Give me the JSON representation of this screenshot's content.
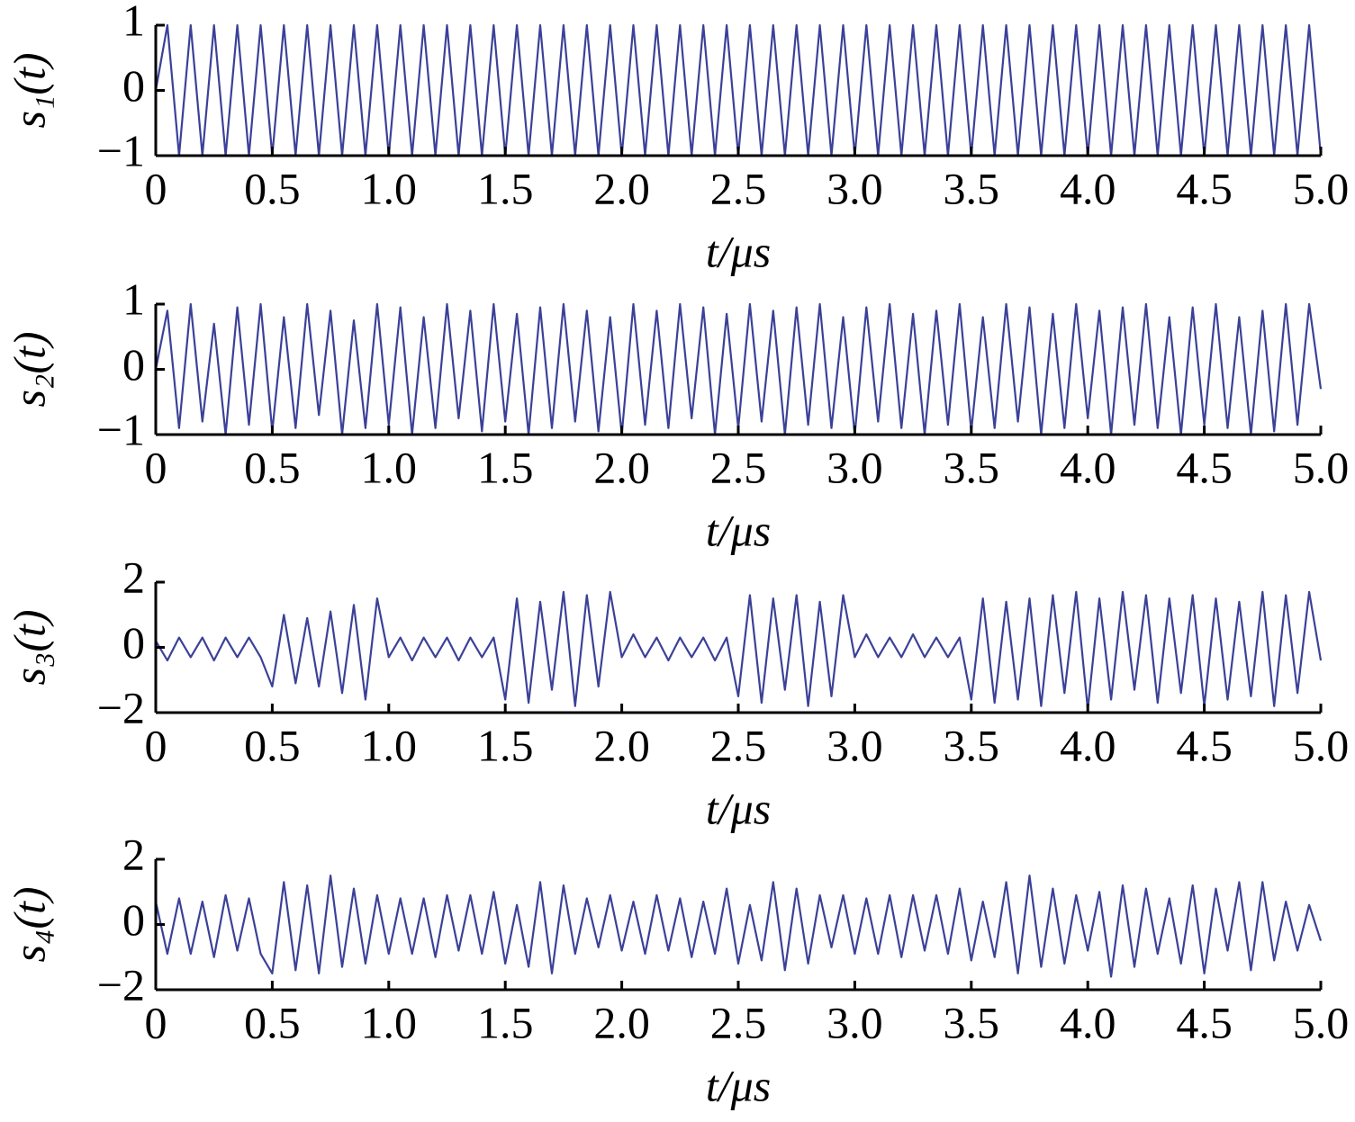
{
  "chart_data": [
    {
      "type": "line",
      "ylabel": "s₁(t)",
      "xlabel": "t/μs",
      "x": [
        0,
        0.05,
        0.1,
        0.15,
        0.2,
        0.25,
        0.3,
        0.35,
        0.4,
        0.45,
        0.5,
        0.55,
        0.6,
        0.65,
        0.7,
        0.75,
        0.8,
        0.85,
        0.9,
        0.95,
        1,
        1.05,
        1.1,
        1.15,
        1.2,
        1.25,
        1.3,
        1.35,
        1.4,
        1.45,
        1.5,
        1.55,
        1.6,
        1.65,
        1.7,
        1.75,
        1.8,
        1.85,
        1.9,
        1.95,
        2,
        2.05,
        2.1,
        2.15,
        2.2,
        2.25,
        2.3,
        2.35,
        2.4,
        2.45,
        2.5,
        2.55,
        2.6,
        2.65,
        2.7,
        2.75,
        2.8,
        2.85,
        2.9,
        2.95,
        3,
        3.05,
        3.1,
        3.15,
        3.2,
        3.25,
        3.3,
        3.35,
        3.4,
        3.45,
        3.5,
        3.55,
        3.6,
        3.65,
        3.7,
        3.75,
        3.8,
        3.85,
        3.9,
        3.95,
        4,
        4.05,
        4.1,
        4.15,
        4.2,
        4.25,
        4.3,
        4.35,
        4.4,
        4.45,
        4.5,
        4.55,
        4.6,
        4.65,
        4.7,
        4.75,
        4.8,
        4.85,
        4.9,
        4.95,
        5
      ],
      "values": [
        0,
        1,
        -1,
        1,
        -1,
        1,
        -1,
        1,
        -1,
        1,
        -1,
        1,
        -1,
        1,
        -1,
        1,
        -1,
        1,
        -1,
        1,
        -1,
        1,
        -1,
        1,
        -1,
        1,
        -1,
        1,
        -1,
        1,
        -1,
        1,
        -1,
        1,
        -1,
        1,
        -1,
        1,
        -1,
        1,
        -1,
        1,
        -1,
        1,
        -1,
        1,
        -1,
        1,
        -1,
        1,
        -1,
        1,
        -1,
        1,
        -1,
        1,
        -1,
        1,
        -1,
        1,
        -1,
        1,
        -1,
        1,
        -1,
        1,
        -1,
        1,
        -1,
        1,
        -1,
        1,
        -1,
        1,
        -1,
        1,
        -1,
        1,
        -1,
        1,
        -1,
        1,
        -1,
        1,
        -1,
        1,
        -1,
        1,
        -1,
        1,
        -1,
        1,
        -1,
        1,
        -1,
        1,
        -1,
        1,
        -1,
        1,
        -1
      ],
      "color": "#3b4197",
      "xlim": [
        0,
        5
      ],
      "xticks": [
        0,
        0.5,
        {
          "value": 1,
          "label": "1.0"
        },
        1.5,
        {
          "value": 2,
          "label": "2.0"
        },
        2.5,
        {
          "value": 3,
          "label": "3.0"
        },
        3.5,
        {
          "value": 4,
          "label": "4.0"
        },
        4.5,
        {
          "value": 5,
          "label": "5.0"
        }
      ],
      "ylim": [
        -1,
        1
      ],
      "yticks": [
        {
          "value": -1,
          "label": "−1"
        },
        0,
        1
      ]
    },
    {
      "type": "line",
      "ylabel": "s₂(t)",
      "xlabel": "t/μs",
      "x": [
        0,
        0.05,
        0.1,
        0.15,
        0.2,
        0.25,
        0.3,
        0.35,
        0.4,
        0.45,
        0.5,
        0.55,
        0.6,
        0.65,
        0.7,
        0.75,
        0.8,
        0.85,
        0.9,
        0.95,
        1,
        1.05,
        1.1,
        1.15,
        1.2,
        1.25,
        1.3,
        1.35,
        1.4,
        1.45,
        1.5,
        1.55,
        1.6,
        1.65,
        1.7,
        1.75,
        1.8,
        1.85,
        1.9,
        1.95,
        2,
        2.05,
        2.1,
        2.15,
        2.2,
        2.25,
        2.3,
        2.35,
        2.4,
        2.45,
        2.5,
        2.55,
        2.6,
        2.65,
        2.7,
        2.75,
        2.8,
        2.85,
        2.9,
        2.95,
        3,
        3.05,
        3.1,
        3.15,
        3.2,
        3.25,
        3.3,
        3.35,
        3.4,
        3.45,
        3.5,
        3.55,
        3.6,
        3.65,
        3.7,
        3.75,
        3.8,
        3.85,
        3.9,
        3.95,
        4,
        4.05,
        4.1,
        4.15,
        4.2,
        4.25,
        4.3,
        4.35,
        4.4,
        4.45,
        4.5,
        4.55,
        4.6,
        4.65,
        4.7,
        4.75,
        4.8,
        4.85,
        4.9,
        4.95,
        5
      ],
      "values": [
        0,
        0.9,
        -0.9,
        1,
        -0.8,
        0.7,
        -1,
        0.95,
        -0.85,
        1,
        -0.95,
        0.8,
        -0.9,
        1,
        -0.7,
        0.9,
        -1,
        0.75,
        -0.9,
        1,
        -0.85,
        0.95,
        -1,
        0.8,
        -0.9,
        1,
        -0.75,
        0.9,
        -0.95,
        1,
        -0.8,
        0.85,
        -1,
        0.95,
        -0.9,
        1,
        -0.8,
        0.9,
        -0.95,
        0.8,
        -1,
        1,
        -0.85,
        0.9,
        -0.9,
        1,
        -0.75,
        0.95,
        -1,
        0.85,
        -0.9,
        1,
        -0.8,
        0.9,
        -1,
        0.95,
        -0.85,
        1,
        -0.9,
        0.8,
        -1,
        0.95,
        -0.8,
        1,
        -0.9,
        0.85,
        -1,
        0.9,
        -0.85,
        1,
        -0.95,
        0.8,
        -0.9,
        1,
        -0.8,
        0.95,
        -1,
        0.85,
        -0.9,
        1,
        -0.75,
        0.9,
        -1,
        0.95,
        -0.85,
        1,
        -0.9,
        0.8,
        -1,
        0.95,
        -0.85,
        1,
        -0.9,
        0.8,
        -1,
        0.9,
        -0.95,
        1,
        -0.85,
        1,
        -0.3
      ],
      "color": "#3b4197",
      "xlim": [
        0,
        5
      ],
      "xticks": [
        0,
        0.5,
        {
          "value": 1,
          "label": "1.0"
        },
        1.5,
        {
          "value": 2,
          "label": "2.0"
        },
        2.5,
        {
          "value": 3,
          "label": "3.0"
        },
        3.5,
        {
          "value": 4,
          "label": "4.0"
        },
        4.5,
        {
          "value": 5,
          "label": "5.0"
        }
      ],
      "ylim": [
        -1,
        1
      ],
      "yticks": [
        {
          "value": -1,
          "label": "−1"
        },
        0,
        1
      ]
    },
    {
      "type": "line",
      "ylabel": "s₃(t)",
      "xlabel": "t/μs",
      "x": [
        0,
        0.05,
        0.1,
        0.15,
        0.2,
        0.25,
        0.3,
        0.35,
        0.4,
        0.45,
        0.5,
        0.55,
        0.6,
        0.65,
        0.7,
        0.75,
        0.8,
        0.85,
        0.9,
        0.95,
        1,
        1.05,
        1.1,
        1.15,
        1.2,
        1.25,
        1.3,
        1.35,
        1.4,
        1.45,
        1.5,
        1.55,
        1.6,
        1.65,
        1.7,
        1.75,
        1.8,
        1.85,
        1.9,
        1.95,
        2,
        2.05,
        2.1,
        2.15,
        2.2,
        2.25,
        2.3,
        2.35,
        2.4,
        2.45,
        2.5,
        2.55,
        2.6,
        2.65,
        2.7,
        2.75,
        2.8,
        2.85,
        2.9,
        2.95,
        3,
        3.05,
        3.1,
        3.15,
        3.2,
        3.25,
        3.3,
        3.35,
        3.4,
        3.45,
        3.5,
        3.55,
        3.6,
        3.65,
        3.7,
        3.75,
        3.8,
        3.85,
        3.9,
        3.95,
        4,
        4.05,
        4.1,
        4.15,
        4.2,
        4.25,
        4.3,
        4.35,
        4.4,
        4.45,
        4.5,
        4.55,
        4.6,
        4.65,
        4.7,
        4.75,
        4.8,
        4.85,
        4.9,
        4.95,
        5
      ],
      "values": [
        0.2,
        -0.4,
        0.3,
        -0.3,
        0.3,
        -0.4,
        0.3,
        -0.3,
        0.3,
        -0.3,
        -1.2,
        1,
        -1.1,
        0.9,
        -1.2,
        1.1,
        -1.4,
        1.3,
        -1.6,
        1.5,
        -0.3,
        0.3,
        -0.4,
        0.3,
        -0.3,
        0.3,
        -0.4,
        0.3,
        -0.3,
        0.3,
        -1.6,
        1.5,
        -1.7,
        1.4,
        -1.3,
        1.7,
        -1.8,
        1.6,
        -1.2,
        1.7,
        -0.3,
        0.4,
        -0.3,
        0.3,
        -0.4,
        0.3,
        -0.3,
        0.3,
        -0.4,
        0.3,
        -1.5,
        1.6,
        -1.7,
        1.5,
        -1.3,
        1.6,
        -1.8,
        1.4,
        -1.5,
        1.6,
        -0.3,
        0.4,
        -0.3,
        0.3,
        -0.3,
        0.4,
        -0.3,
        0.3,
        -0.3,
        0.3,
        -1.6,
        1.5,
        -1.7,
        1.4,
        -1.6,
        1.5,
        -1.8,
        1.6,
        -1.4,
        1.7,
        -1.9,
        1.5,
        -1.6,
        1.7,
        -1.3,
        1.6,
        -1.7,
        1.5,
        -1.4,
        1.6,
        -1.8,
        1.5,
        -1.6,
        1.4,
        -1.5,
        1.7,
        -1.8,
        1.6,
        -1.4,
        1.7,
        -0.4
      ],
      "color": "#3b4197",
      "xlim": [
        0,
        5
      ],
      "xticks": [
        0,
        0.5,
        {
          "value": 1,
          "label": "1.0"
        },
        1.5,
        {
          "value": 2,
          "label": "2.0"
        },
        2.5,
        {
          "value": 3,
          "label": "3.0"
        },
        3.5,
        {
          "value": 4,
          "label": "4.0"
        },
        4.5,
        {
          "value": 5,
          "label": "5.0"
        }
      ],
      "ylim": [
        -2,
        2
      ],
      "yticks": [
        {
          "value": -2,
          "label": "−2"
        },
        0,
        2
      ]
    },
    {
      "type": "line",
      "ylabel": "s₄(t)",
      "xlabel": "t/μs",
      "x": [
        0,
        0.05,
        0.1,
        0.15,
        0.2,
        0.25,
        0.3,
        0.35,
        0.4,
        0.45,
        0.5,
        0.55,
        0.6,
        0.65,
        0.7,
        0.75,
        0.8,
        0.85,
        0.9,
        0.95,
        1,
        1.05,
        1.1,
        1.15,
        1.2,
        1.25,
        1.3,
        1.35,
        1.4,
        1.45,
        1.5,
        1.55,
        1.6,
        1.65,
        1.7,
        1.75,
        1.8,
        1.85,
        1.9,
        1.95,
        2,
        2.05,
        2.1,
        2.15,
        2.2,
        2.25,
        2.3,
        2.35,
        2.4,
        2.45,
        2.5,
        2.55,
        2.6,
        2.65,
        2.7,
        2.75,
        2.8,
        2.85,
        2.9,
        2.95,
        3,
        3.05,
        3.1,
        3.15,
        3.2,
        3.25,
        3.3,
        3.35,
        3.4,
        3.45,
        3.5,
        3.55,
        3.6,
        3.65,
        3.7,
        3.75,
        3.8,
        3.85,
        3.9,
        3.95,
        4,
        4.05,
        4.1,
        4.15,
        4.2,
        4.25,
        4.3,
        4.35,
        4.4,
        4.45,
        4.5,
        4.55,
        4.6,
        4.65,
        4.7,
        4.75,
        4.8,
        4.85,
        4.9,
        4.95,
        5
      ],
      "values": [
        0.7,
        -0.9,
        0.8,
        -0.9,
        0.7,
        -1,
        0.9,
        -0.8,
        0.8,
        -0.9,
        -1.5,
        1.3,
        -1.4,
        1.2,
        -1.5,
        1.5,
        -1.3,
        1.1,
        -1.2,
        0.9,
        -0.9,
        0.8,
        -0.9,
        0.8,
        -1,
        0.9,
        -0.8,
        0.9,
        -0.9,
        1,
        -1.2,
        0.6,
        -1.3,
        1.3,
        -1.5,
        1.2,
        -0.9,
        0.8,
        -0.7,
        0.9,
        -0.8,
        0.7,
        -0.9,
        0.9,
        -0.8,
        0.8,
        -1,
        0.7,
        -0.9,
        1.1,
        -1.2,
        0.6,
        -1.1,
        1.3,
        -1.4,
        1.1,
        -1.2,
        0.9,
        -0.7,
        0.9,
        -0.9,
        0.8,
        -0.9,
        0.9,
        -1,
        0.9,
        -0.8,
        0.9,
        -0.9,
        1.1,
        -1.1,
        0.7,
        -1,
        1.3,
        -1.5,
        1.5,
        -1.3,
        1.1,
        -1.2,
        0.9,
        -0.8,
        1,
        -1.6,
        1.2,
        -1.3,
        1.1,
        -0.9,
        0.8,
        -1.2,
        1.2,
        -1.5,
        1.1,
        -0.8,
        1.3,
        -1.4,
        1.3,
        -1.1,
        0.7,
        -0.8,
        0.6,
        -0.5
      ],
      "color": "#3b4197",
      "xlim": [
        0,
        5
      ],
      "xticks": [
        0,
        0.5,
        {
          "value": 1,
          "label": "1.0"
        },
        1.5,
        {
          "value": 2,
          "label": "2.0"
        },
        2.5,
        {
          "value": 3,
          "label": "3.0"
        },
        3.5,
        {
          "value": 4,
          "label": "4.0"
        },
        4.5,
        {
          "value": 5,
          "label": "5.0"
        }
      ],
      "ylim": [
        -2,
        2
      ],
      "yticks": [
        {
          "value": -2,
          "label": "−2"
        },
        0,
        2
      ]
    }
  ]
}
